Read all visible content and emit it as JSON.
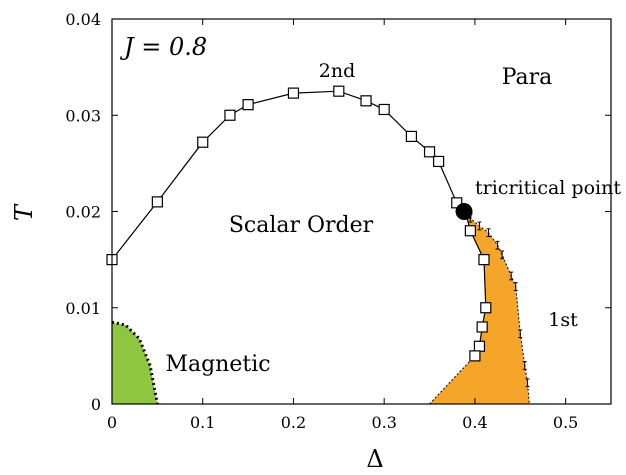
{
  "chart_data": {
    "type": "scatter",
    "xlabel": "Δ",
    "ylabel": "T",
    "xlim": [
      0,
      0.55
    ],
    "ylim": [
      0,
      0.04
    ],
    "x_ticks": [
      0,
      0.1,
      0.2,
      0.3,
      0.4,
      0.5
    ],
    "x_tick_labels": [
      "0",
      "0.1",
      "0.2",
      "0.3",
      "0.4",
      "0.5"
    ],
    "y_ticks": [
      0,
      0.01,
      0.02,
      0.03,
      0.04
    ],
    "y_tick_labels": [
      "0",
      "0.01",
      "0.02",
      "0.03",
      "0.04"
    ],
    "grid": false,
    "parameter_label": "J = 0.8",
    "region_labels": {
      "para": "Para",
      "scalar_order": "Scalar Order",
      "magnetic": "Magnetic"
    },
    "transition_labels": {
      "second_order": "2nd",
      "first_order": "1st",
      "tricritical": "tricritical point"
    },
    "colors": {
      "magnetic_fill": "#8fc63f",
      "first_order_fill": "#f5a52a",
      "line": "#000000"
    },
    "series": [
      {
        "name": "2nd",
        "marker": "open-square",
        "x": [
          0,
          0.05,
          0.1,
          0.13,
          0.15,
          0.2,
          0.25,
          0.28,
          0.3,
          0.33,
          0.35,
          0.36,
          0.38
        ],
        "y": [
          0.015,
          0.021,
          0.0272,
          0.03,
          0.0311,
          0.0323,
          0.0325,
          0.0315,
          0.0306,
          0.0278,
          0.0262,
          0.0252,
          0.0209
        ]
      },
      {
        "marker": "open-square",
        "x": [
          0.39,
          0.395,
          0.41,
          0.412,
          0.408,
          0.405,
          0.4
        ],
        "y": [
          0.0198,
          0.018,
          0.015,
          0.01,
          0.008,
          0.006,
          0.005
        ]
      },
      {
        "name": "1st",
        "marker": "error-bar",
        "x": [
          0.395,
          0.405,
          0.415,
          0.425,
          0.43,
          0.44,
          0.445,
          0.45,
          0.455,
          0.458
        ],
        "y": [
          0.0193,
          0.0185,
          0.0178,
          0.0165,
          0.0155,
          0.0133,
          0.0122,
          0.0073,
          0.004,
          0.0022
        ],
        "err": [
          0.0004,
          0.0004,
          0.0004,
          0.0004,
          0.0004,
          0.0004,
          0.0004,
          0.0004,
          0.0004,
          0.0004
        ]
      },
      {
        "name": "tricritical point",
        "marker": "filled-circle",
        "x": [
          0.388
        ],
        "y": [
          0.02
        ]
      }
    ],
    "regions": [
      {
        "name": "Magnetic",
        "color": "#8fc63f",
        "boundary": "dotted",
        "x": [
          0,
          0.015,
          0.03,
          0.042,
          0.05
        ],
        "y": [
          0.0085,
          0.0082,
          0.0068,
          0.004,
          0
        ]
      },
      {
        "name": "1st-order region",
        "color": "#f5a52a",
        "x": [
          0.388,
          0.395,
          0.405,
          0.415,
          0.425,
          0.43,
          0.44,
          0.445,
          0.45,
          0.455,
          0.458,
          0.46,
          0.35,
          0.4,
          0.405,
          0.408,
          0.412,
          0.41,
          0.395
        ],
        "y": [
          0.02,
          0.0193,
          0.0185,
          0.0178,
          0.0165,
          0.0155,
          0.0133,
          0.0122,
          0.0073,
          0.004,
          0.0022,
          0,
          0,
          0.005,
          0.006,
          0.008,
          0.01,
          0.015,
          0.018
        ]
      }
    ]
  }
}
